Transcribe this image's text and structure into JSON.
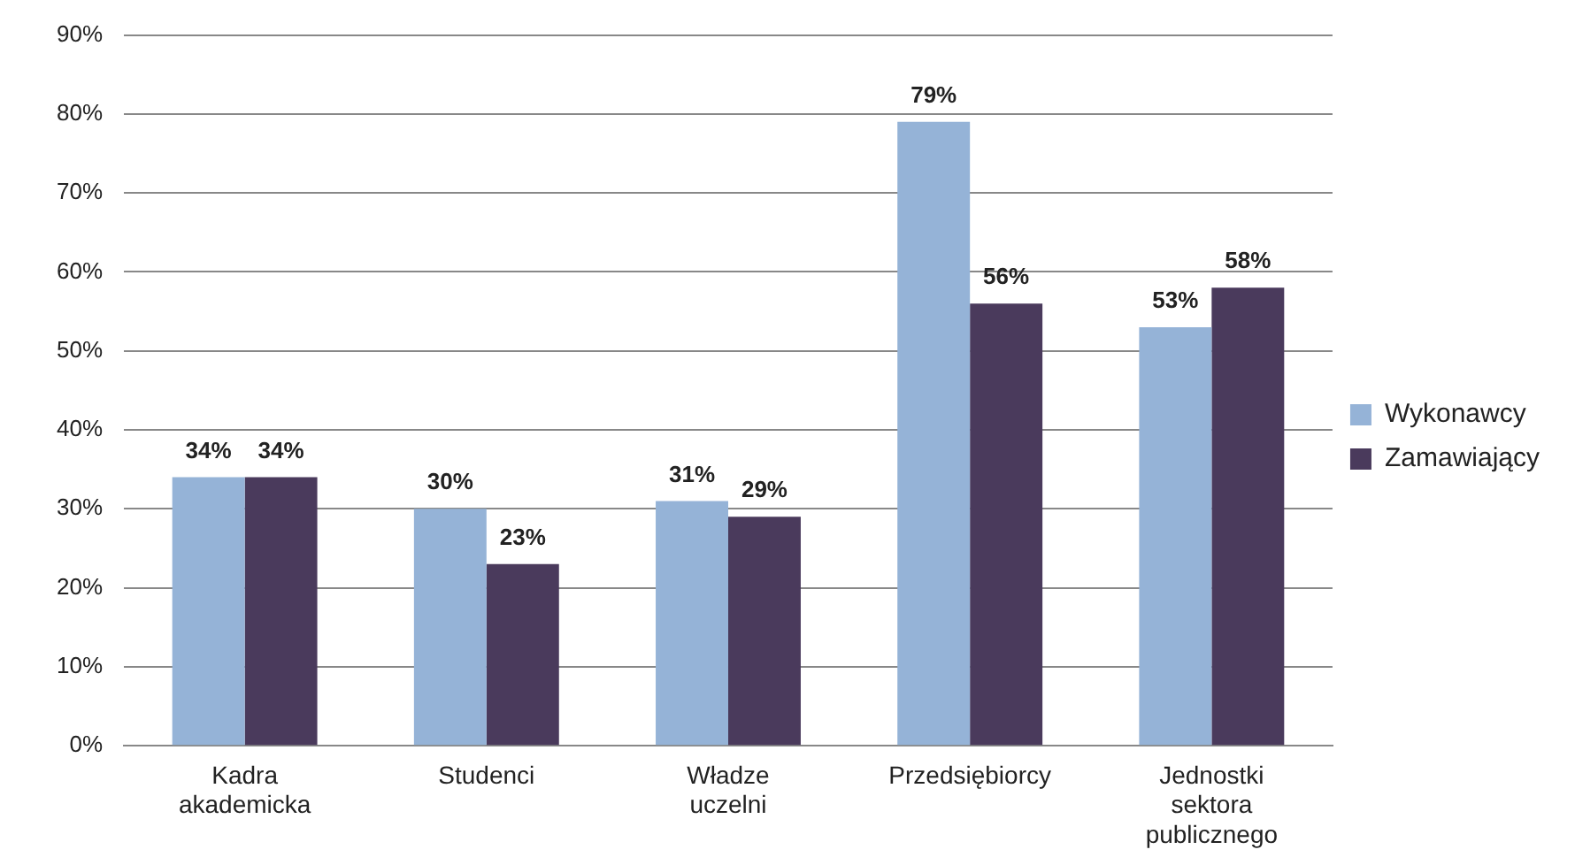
{
  "chart_data": {
    "type": "bar",
    "categories": [
      "Kadra akademicka",
      "Studenci",
      "Władze uczelni",
      "Przedsiębiorcy",
      "Jednostki sektora publicznego"
    ],
    "series": [
      {
        "name": "Wykonawcy",
        "color": "#95b3d7",
        "values": [
          34,
          30,
          31,
          79,
          53
        ],
        "value_labels": [
          "34%",
          "30%",
          "31%",
          "79%",
          "53%"
        ]
      },
      {
        "name": "Zamawiający",
        "color": "#4a3a5c",
        "values": [
          34,
          23,
          29,
          56,
          58
        ],
        "value_labels": [
          "34%",
          "23%",
          "29%",
          "56%",
          "58%"
        ]
      }
    ],
    "ylim": [
      0,
      90
    ],
    "yticks": [
      {
        "value": 0,
        "label": "0%"
      },
      {
        "value": 10,
        "label": "10%"
      },
      {
        "value": 20,
        "label": "20%"
      },
      {
        "value": 30,
        "label": "30%"
      },
      {
        "value": 40,
        "label": "40%"
      },
      {
        "value": 50,
        "label": "50%"
      },
      {
        "value": 60,
        "label": "60%"
      },
      {
        "value": 70,
        "label": "70%"
      },
      {
        "value": 80,
        "label": "80%"
      },
      {
        "value": 90,
        "label": "90%"
      }
    ],
    "grid": "y",
    "legend": "right"
  }
}
